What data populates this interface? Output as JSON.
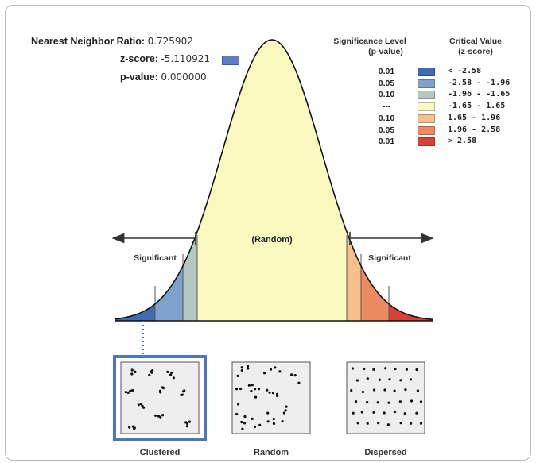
{
  "stats": {
    "nnr_label": "Nearest Neighbor Ratio:",
    "nnr_value": "0.725902",
    "z_label": "z-score:",
    "z_value": "-5.110921",
    "p_label": "p-value:",
    "p_value": "0.000000",
    "z_swatch_color": "#5b7fc0"
  },
  "legend": {
    "sig_header_line1": "Significance Level",
    "sig_header_line2": "(p-value)",
    "crit_header_line1": "Critical Value",
    "crit_header_line2": "(z-score)",
    "rows": [
      {
        "p": "0.01",
        "color": "#3f6cb0",
        "range": "< -2.58"
      },
      {
        "p": "0.05",
        "color": "#7fa2cc",
        "range": "-2.58 - -1.96"
      },
      {
        "p": "0.10",
        "color": "#b6c6c0",
        "range": "-1.96 - -1.65"
      },
      {
        "p": "---",
        "color": "#fafac0",
        "range": "-1.65 - 1.65"
      },
      {
        "p": "0.10",
        "color": "#f6c08c",
        "range": "1.65 - 1.96"
      },
      {
        "p": "0.05",
        "color": "#ec8a62",
        "range": "1.96 - 2.58"
      },
      {
        "p": "0.01",
        "color": "#d9403a",
        "range": "> 2.58"
      }
    ]
  },
  "curve": {
    "center_label": "(Random)",
    "left_label": "Significant",
    "right_label": "Significant"
  },
  "patterns": {
    "clustered": "Clustered",
    "random": "Random",
    "dispersed": "Dispersed",
    "selected": "clustered"
  }
}
